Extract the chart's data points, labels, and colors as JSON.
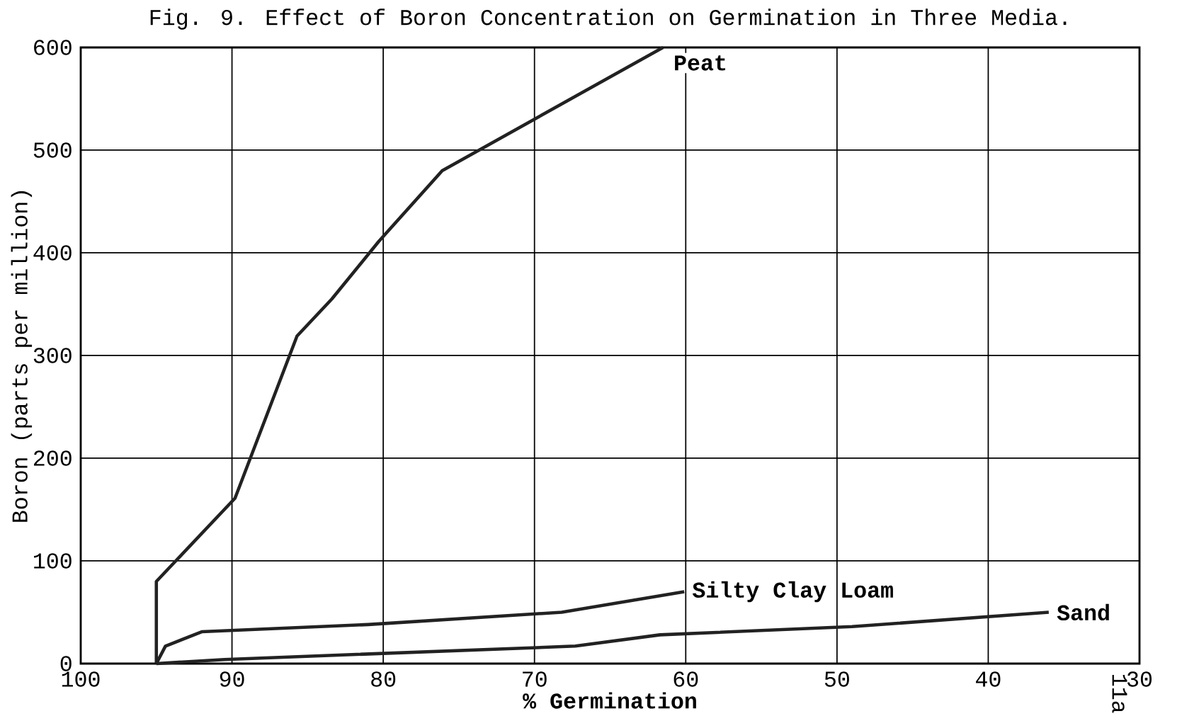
{
  "chart_data": {
    "type": "line",
    "title": "Fig. 9. Effect of Boron Concentration on Germination in Three Media.",
    "xlabel": "% Germination",
    "ylabel": "Boron (parts per million)",
    "xlim": [
      100,
      30
    ],
    "ylim": [
      0,
      600
    ],
    "xticks": [
      100,
      90,
      80,
      70,
      60,
      50,
      40,
      30
    ],
    "yticks": [
      0,
      100,
      200,
      300,
      400,
      500,
      600
    ],
    "grid": true,
    "legend": false,
    "marker": "none",
    "line_style": "solid",
    "annotations": [
      "11a"
    ],
    "series": [
      {
        "name": "Peat",
        "color": "#222222",
        "x": [
          95,
          95,
          89.8,
          85.7,
          83.4,
          80.3,
          76.1,
          61.5
        ],
        "values": [
          0,
          80,
          161,
          319,
          355,
          411,
          480,
          600
        ]
      },
      {
        "name": "Silty Clay Loam",
        "color": "#222222",
        "x": [
          95,
          94.4,
          92,
          81,
          68.2,
          60.1
        ],
        "values": [
          0,
          17,
          31,
          38,
          50,
          70
        ]
      },
      {
        "name": "Sand",
        "color": "#222222",
        "x": [
          95,
          90.5,
          67.3,
          61.7,
          49,
          36
        ],
        "values": [
          0,
          4,
          17,
          28,
          36,
          50
        ]
      }
    ]
  }
}
